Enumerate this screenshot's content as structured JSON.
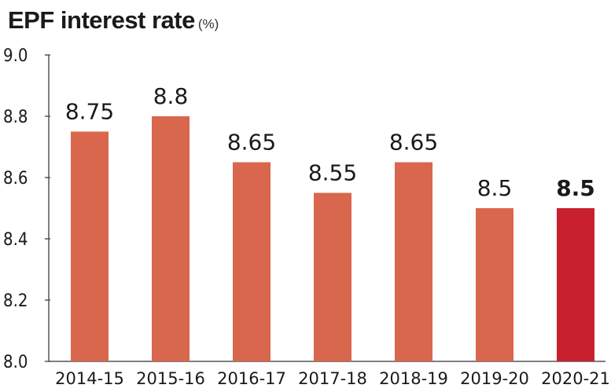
{
  "header": {
    "title": "EPF interest rate",
    "unit": "(%)"
  },
  "colors": {
    "bar": "#d9674e",
    "highlight": "#c8202e",
    "axis": "#555555"
  },
  "chart_data": {
    "type": "bar",
    "title": "EPF interest rate",
    "subtitle": "(%)",
    "xlabel": "",
    "ylabel": "",
    "categories": [
      "2014-15",
      "2015-16",
      "2016-17",
      "2017-18",
      "2018-19",
      "2019-20",
      "2020-21"
    ],
    "values": [
      8.75,
      8.8,
      8.65,
      8.55,
      8.65,
      8.5,
      8.5
    ],
    "value_labels": [
      "8.75",
      "8.8",
      "8.65",
      "8.55",
      "8.65",
      "8.5",
      "8.5"
    ],
    "highlight_index": 6,
    "ylim": [
      8.0,
      9.0
    ],
    "yticks": [
      8.0,
      8.2,
      8.4,
      8.6,
      8.8,
      9.0
    ],
    "ytick_labels": [
      "8.0",
      "8.2",
      "8.4",
      "8.6",
      "8.8",
      "9.0"
    ],
    "grid": false,
    "legend": "none"
  }
}
